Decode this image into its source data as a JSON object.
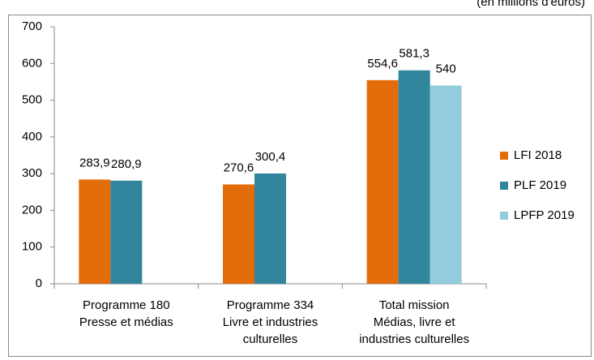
{
  "chart_data": {
    "type": "bar",
    "subtitle": "(en millions d'euros)",
    "categories": [
      [
        "Programme 180",
        "Presse et médias"
      ],
      [
        "Programme 334",
        "Livre et industries",
        "culturelles"
      ],
      [
        "Total mission",
        "Médias, livre et",
        "industries culturelles"
      ]
    ],
    "series": [
      {
        "name": "LFI 2018",
        "color": "#e36c0a",
        "values": [
          283.9,
          270.6,
          554.6
        ],
        "value_labels": [
          "283,9",
          "270,6",
          "554,6"
        ]
      },
      {
        "name": "PLF 2019",
        "color": "#31859c",
        "values": [
          280.9,
          300.4,
          581.3
        ],
        "value_labels": [
          "280,9",
          "300,4",
          "581,3"
        ]
      },
      {
        "name": "LPFP 2019",
        "color": "#93cddd",
        "values": [
          null,
          null,
          540
        ],
        "value_labels": [
          null,
          null,
          "540"
        ]
      }
    ],
    "ylim": [
      0,
      700
    ],
    "yticks": [
      0,
      100,
      200,
      300,
      400,
      500,
      600,
      700
    ],
    "legend": "right"
  }
}
